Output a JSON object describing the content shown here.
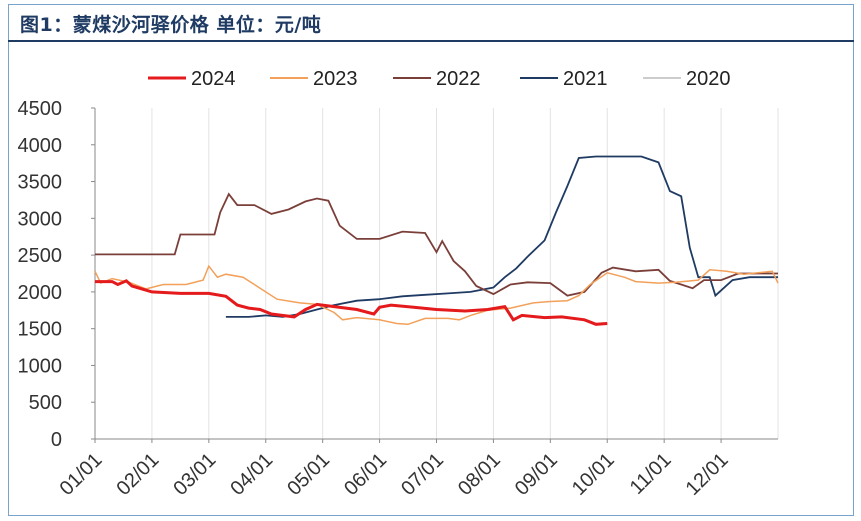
{
  "title": "图1：蒙煤沙河驿价格 单位：元/吨",
  "chart_data": {
    "type": "line",
    "title": "图1：蒙煤沙河驿价格 单位：元/吨",
    "xlabel": "",
    "ylabel": "",
    "x_tick_labels": [
      "01/01",
      "02/01",
      "03/01",
      "04/01",
      "05/01",
      "06/01",
      "07/01",
      "08/01",
      "09/01",
      "10/01",
      "11/01",
      "12/01"
    ],
    "y_tick_labels": [
      "0",
      "500",
      "1000",
      "1500",
      "2000",
      "2500",
      "3000",
      "3500",
      "4000",
      "4500"
    ],
    "ylim": [
      0,
      4500
    ],
    "x_unit": "month of year (1 = 01/01)",
    "grid": "vertical only",
    "legend_position": "top",
    "series": [
      {
        "name": "2024",
        "color": "#e41a1c",
        "values": [
          [
            1.0,
            2140
          ],
          [
            1.3,
            2140
          ],
          [
            1.4,
            2100
          ],
          [
            1.55,
            2150
          ],
          [
            1.65,
            2080
          ],
          [
            2.0,
            2000
          ],
          [
            2.5,
            1980
          ],
          [
            3.0,
            1980
          ],
          [
            3.3,
            1940
          ],
          [
            3.5,
            1820
          ],
          [
            3.7,
            1780
          ],
          [
            3.9,
            1760
          ],
          [
            4.1,
            1700
          ],
          [
            4.5,
            1660
          ],
          [
            4.7,
            1760
          ],
          [
            4.9,
            1830
          ],
          [
            5.2,
            1800
          ],
          [
            5.6,
            1760
          ],
          [
            5.9,
            1700
          ],
          [
            6.0,
            1790
          ],
          [
            6.2,
            1820
          ],
          [
            6.6,
            1790
          ],
          [
            7.0,
            1760
          ],
          [
            7.5,
            1740
          ],
          [
            7.9,
            1760
          ],
          [
            8.2,
            1800
          ],
          [
            8.35,
            1620
          ],
          [
            8.5,
            1680
          ],
          [
            8.9,
            1650
          ],
          [
            9.2,
            1660
          ],
          [
            9.6,
            1620
          ],
          [
            9.8,
            1560
          ],
          [
            10.0,
            1570
          ]
        ]
      },
      {
        "name": "2023",
        "color": "#f2a05a",
        "values": [
          [
            1.0,
            2280
          ],
          [
            1.1,
            2120
          ],
          [
            1.3,
            2180
          ],
          [
            1.6,
            2130
          ],
          [
            1.9,
            2040
          ],
          [
            2.2,
            2100
          ],
          [
            2.6,
            2100
          ],
          [
            2.9,
            2160
          ],
          [
            3.0,
            2350
          ],
          [
            3.15,
            2200
          ],
          [
            3.3,
            2240
          ],
          [
            3.6,
            2200
          ],
          [
            3.9,
            2050
          ],
          [
            4.2,
            1900
          ],
          [
            4.6,
            1850
          ],
          [
            4.9,
            1830
          ],
          [
            5.2,
            1720
          ],
          [
            5.35,
            1620
          ],
          [
            5.6,
            1650
          ],
          [
            6.0,
            1620
          ],
          [
            6.3,
            1570
          ],
          [
            6.5,
            1560
          ],
          [
            6.8,
            1640
          ],
          [
            7.2,
            1640
          ],
          [
            7.4,
            1620
          ],
          [
            7.6,
            1680
          ],
          [
            7.9,
            1750
          ],
          [
            8.3,
            1780
          ],
          [
            8.7,
            1850
          ],
          [
            9.0,
            1870
          ],
          [
            9.3,
            1880
          ],
          [
            9.5,
            1950
          ],
          [
            9.7,
            2100
          ],
          [
            10.0,
            2260
          ],
          [
            10.3,
            2200
          ],
          [
            10.5,
            2140
          ],
          [
            10.9,
            2120
          ],
          [
            11.2,
            2130
          ],
          [
            11.6,
            2160
          ],
          [
            11.8,
            2300
          ],
          [
            12.1,
            2280
          ],
          [
            12.4,
            2240
          ],
          [
            12.9,
            2280
          ],
          [
            13.0,
            2120
          ]
        ]
      },
      {
        "name": "2022",
        "color": "#7b3f3a",
        "values": [
          [
            1.0,
            2510
          ],
          [
            1.5,
            2510
          ],
          [
            2.0,
            2510
          ],
          [
            2.4,
            2510
          ],
          [
            2.5,
            2780
          ],
          [
            2.8,
            2780
          ],
          [
            3.1,
            2780
          ],
          [
            3.2,
            3080
          ],
          [
            3.35,
            3330
          ],
          [
            3.5,
            3180
          ],
          [
            3.8,
            3180
          ],
          [
            4.1,
            3060
          ],
          [
            4.4,
            3120
          ],
          [
            4.7,
            3230
          ],
          [
            4.9,
            3270
          ],
          [
            5.1,
            3240
          ],
          [
            5.3,
            2900
          ],
          [
            5.6,
            2720
          ],
          [
            6.0,
            2720
          ],
          [
            6.4,
            2820
          ],
          [
            6.8,
            2800
          ],
          [
            7.0,
            2540
          ],
          [
            7.1,
            2690
          ],
          [
            7.3,
            2420
          ],
          [
            7.5,
            2280
          ],
          [
            7.7,
            2080
          ],
          [
            8.0,
            1970
          ],
          [
            8.3,
            2100
          ],
          [
            8.6,
            2130
          ],
          [
            9.0,
            2120
          ],
          [
            9.3,
            1950
          ],
          [
            9.6,
            2000
          ],
          [
            9.9,
            2260
          ],
          [
            10.1,
            2330
          ],
          [
            10.5,
            2280
          ],
          [
            10.9,
            2300
          ],
          [
            11.1,
            2150
          ],
          [
            11.3,
            2100
          ],
          [
            11.5,
            2050
          ],
          [
            11.7,
            2160
          ],
          [
            12.0,
            2160
          ],
          [
            12.3,
            2250
          ],
          [
            12.7,
            2250
          ],
          [
            13.0,
            2250
          ]
        ]
      },
      {
        "name": "2021",
        "color": "#1f3b63",
        "values": [
          [
            3.3,
            1660
          ],
          [
            3.7,
            1660
          ],
          [
            4.0,
            1680
          ],
          [
            4.3,
            1660
          ],
          [
            4.6,
            1700
          ],
          [
            4.9,
            1760
          ],
          [
            5.2,
            1820
          ],
          [
            5.6,
            1880
          ],
          [
            6.0,
            1900
          ],
          [
            6.4,
            1940
          ],
          [
            6.8,
            1960
          ],
          [
            7.2,
            1980
          ],
          [
            7.6,
            2000
          ],
          [
            8.0,
            2060
          ],
          [
            8.2,
            2200
          ],
          [
            8.4,
            2320
          ],
          [
            8.6,
            2480
          ],
          [
            8.9,
            2700
          ],
          [
            9.1,
            3080
          ],
          [
            9.3,
            3440
          ],
          [
            9.5,
            3820
          ],
          [
            9.8,
            3840
          ],
          [
            10.2,
            3840
          ],
          [
            10.6,
            3840
          ],
          [
            10.9,
            3760
          ],
          [
            11.1,
            3370
          ],
          [
            11.3,
            3300
          ],
          [
            11.45,
            2600
          ],
          [
            11.6,
            2200
          ],
          [
            11.8,
            2200
          ],
          [
            11.9,
            1950
          ],
          [
            12.2,
            2160
          ],
          [
            12.5,
            2200
          ],
          [
            13.0,
            2200
          ]
        ]
      },
      {
        "name": "2020",
        "color": "#cccccc",
        "values": []
      }
    ]
  }
}
